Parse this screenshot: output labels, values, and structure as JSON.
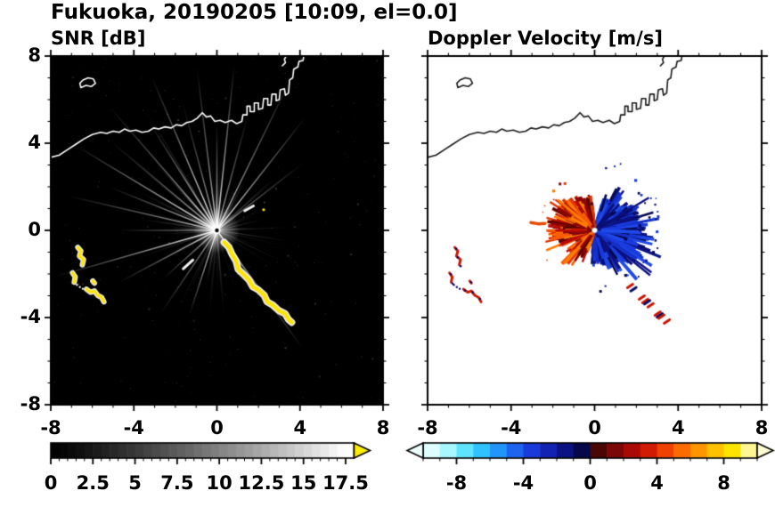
{
  "header": {
    "title": "Fukuoka, 20190205 [10:09, el=0.0]"
  },
  "chart_data": [
    {
      "type": "heatmap",
      "panel": "snr",
      "title": "SNR [dB]",
      "xlim": [
        -8,
        8
      ],
      "ylim": [
        -8,
        8
      ],
      "xticks": [
        -8,
        -4,
        0,
        4,
        8
      ],
      "yticks": [
        8,
        4,
        0,
        -4,
        -8
      ],
      "minor_tick_step": 1,
      "grid": false,
      "background": "#000000",
      "colorbar": {
        "units": "dB",
        "range": [
          0,
          18
        ],
        "label_ticks": [
          0,
          2.5,
          5,
          7.5,
          10,
          12.5,
          15,
          17.5
        ],
        "minor_step": 0.5,
        "start_color": "#000000",
        "end_color": "#ffffff",
        "over_arrow_color": "#ffee00"
      },
      "content": {
        "radar_center": [
          0,
          0
        ],
        "streaks": {
          "seed": 7,
          "count": 120,
          "max_len_units": 7.8,
          "bright_rays_deg": [
            38,
            52,
            64,
            75,
            84,
            90,
            97,
            105,
            113,
            122,
            131,
            140,
            149,
            158,
            167,
            180,
            196,
            208,
            222,
            236,
            252,
            306
          ],
          "bright_len_units": [
            5.2,
            6.8,
            7.9,
            5.6,
            7.9,
            5.0,
            7.8,
            6.2,
            7.9,
            6.0,
            7.7,
            6.5,
            7.8,
            5.4,
            7.2,
            4.6,
            7.9,
            5.2,
            3.4,
            4.8,
            4.2,
            6.9
          ]
        },
        "noise": {
          "seed": 11,
          "count": 260
        },
        "echo_outline_color": "#ffffff",
        "echo_fill_color": "#ffe400",
        "bright_dashes": [
          [
            [
              -1.62,
              -1.76
            ],
            [
              -1.16,
              -1.36
            ]
          ],
          [
            [
              1.34,
              0.9
            ],
            [
              1.76,
              1.12
            ]
          ]
        ],
        "yellow_dot": [
          2.25,
          0.95
        ]
      }
    },
    {
      "type": "heatmap",
      "panel": "velocity",
      "title": "Doppler Velocity [m/s]",
      "xlim": [
        -8,
        8
      ],
      "ylim": [
        -8,
        8
      ],
      "xticks": [
        -8,
        -4,
        0,
        4,
        8
      ],
      "yticks": [
        8,
        4,
        0,
        -4,
        -8
      ],
      "minor_tick_step": 1,
      "grid": false,
      "background": "#ffffff",
      "colorbar": {
        "units": "m/s",
        "range": [
          -10,
          10
        ],
        "label_ticks": [
          -8,
          -4,
          0,
          4,
          8
        ],
        "minor_step": 1,
        "block_colors": [
          "#dffdff",
          "#a8f6ff",
          "#5fe4ff",
          "#2fc2ff",
          "#2295f8",
          "#1e64ee",
          "#1a3ada",
          "#1422b4",
          "#0c1282",
          "#05084a",
          "#4a0505",
          "#7c0707",
          "#aa0a06",
          "#d11b04",
          "#ef4102",
          "#fb6c00",
          "#ff9600",
          "#ffc100",
          "#ffe400",
          "#fdf692"
        ],
        "under_arrow_color": "#eeffff",
        "over_arrow_color": "#ffffd2"
      },
      "content": {
        "radar_center": [
          0,
          0
        ],
        "negative_lobe": {
          "seed": 21,
          "count": 560,
          "ang_deg": [
            -95,
            75
          ],
          "peak_deg": -12,
          "base_len_units": 2.5,
          "palette": [
            "#05084a",
            "#0c1282",
            "#1430c8",
            "#1a3ade",
            "#0a0f74",
            "#1f49e8"
          ]
        },
        "positive_lobe": {
          "seed": 33,
          "count": 470,
          "ang_deg": [
            95,
            252
          ],
          "peak_deg": 163,
          "gap_deg": [
            204,
            216
          ],
          "base_len_units": 2.05,
          "palette": [
            "#5a0404",
            "#8c0606",
            "#bb0b03",
            "#e03202",
            "#f85c05",
            "#ff7d00"
          ]
        },
        "edge_specks": {
          "seed": 55,
          "count": 46
        },
        "west_echo_color": "#cc1602",
        "west_dot_color": "#070b66",
        "southeast_specks": [
          [
            1.7,
            -2.55,
            "r"
          ],
          [
            1.86,
            -2.7,
            "b"
          ],
          [
            2.26,
            -3.08,
            "r"
          ],
          [
            2.42,
            -3.24,
            "r"
          ],
          [
            2.52,
            -3.3,
            "b"
          ],
          [
            2.68,
            -3.44,
            "r"
          ],
          [
            3.02,
            -3.82,
            "r"
          ],
          [
            3.12,
            -3.9,
            "b"
          ],
          [
            3.2,
            -3.96,
            "r"
          ],
          [
            3.46,
            -4.18,
            "r"
          ]
        ],
        "isolated_dash": [
          [
            -3.05,
            0.36
          ],
          [
            -2.7,
            0.3
          ],
          [
            -2.38,
            0.32
          ]
        ],
        "isolated_dash_color": "#e84a00"
      }
    }
  ],
  "coastline": {
    "lines": [
      [
        [
          -8,
          3.35
        ],
        [
          -7.6,
          3.45
        ],
        [
          -7.2,
          3.7
        ],
        [
          -6.8,
          3.95
        ],
        [
          -6.4,
          4.2
        ],
        [
          -6,
          4.4
        ],
        [
          -5.6,
          4.5
        ],
        [
          -5.3,
          4.45
        ],
        [
          -5,
          4.55
        ],
        [
          -4.7,
          4.5
        ],
        [
          -4.45,
          4.65
        ],
        [
          -4.2,
          4.55
        ],
        [
          -3.9,
          4.6
        ],
        [
          -3.6,
          4.5
        ],
        [
          -3.3,
          4.55
        ],
        [
          -3.05,
          4.7
        ],
        [
          -2.8,
          4.65
        ],
        [
          -2.5,
          4.75
        ],
        [
          -2.2,
          4.7
        ],
        [
          -1.95,
          4.85
        ],
        [
          -1.7,
          4.8
        ],
        [
          -1.45,
          4.95
        ],
        [
          -1.2,
          5
        ],
        [
          -0.95,
          5.15
        ],
        [
          -0.7,
          5.4
        ],
        [
          -0.5,
          5.2
        ],
        [
          -0.3,
          5.25
        ],
        [
          -0.1,
          5
        ],
        [
          0.15,
          5.05
        ],
        [
          0.4,
          4.95
        ],
        [
          0.7,
          5.05
        ],
        [
          0.95,
          4.9
        ],
        [
          1.2,
          5
        ],
        [
          1.25,
          5.3
        ],
        [
          1.45,
          5.3
        ],
        [
          1.45,
          5.7
        ],
        [
          1.6,
          5.7
        ],
        [
          1.6,
          5.45
        ],
        [
          1.8,
          5.45
        ],
        [
          1.8,
          5.85
        ],
        [
          2,
          5.85
        ],
        [
          2,
          5.55
        ],
        [
          2.2,
          5.6
        ],
        [
          2.25,
          6.05
        ],
        [
          2.45,
          6.05
        ],
        [
          2.45,
          5.75
        ],
        [
          2.6,
          5.75
        ],
        [
          2.65,
          6.25
        ],
        [
          2.85,
          6.25
        ],
        [
          2.85,
          5.95
        ],
        [
          3,
          6
        ],
        [
          3.05,
          6.45
        ],
        [
          3.25,
          6.5
        ],
        [
          3.3,
          6.2
        ],
        [
          3.45,
          6.3
        ],
        [
          3.5,
          6.9
        ],
        [
          3.65,
          7
        ],
        [
          3.7,
          7.4
        ],
        [
          3.9,
          7.5
        ],
        [
          3.95,
          7.75
        ],
        [
          4.15,
          7.8
        ],
        [
          4.2,
          8.1
        ]
      ],
      [
        [
          -6.55,
          6.55
        ],
        [
          -6.3,
          6.65
        ],
        [
          -6.05,
          6.6
        ],
        [
          -5.85,
          6.75
        ],
        [
          -5.95,
          6.95
        ],
        [
          -6.2,
          7
        ],
        [
          -6.45,
          6.9
        ],
        [
          -6.6,
          6.75
        ],
        [
          -6.55,
          6.55
        ]
      ],
      [
        [
          3.15,
          7.55
        ],
        [
          3.3,
          7.7
        ],
        [
          3.25,
          7.85
        ],
        [
          3.4,
          8.1
        ]
      ]
    ]
  },
  "clutter": {
    "southeast_arc": [
      [
        0.35,
        -0.55
      ],
      [
        0.58,
        -0.78
      ],
      [
        0.72,
        -1.08
      ],
      [
        0.93,
        -1.42
      ],
      [
        1.02,
        -1.78
      ],
      [
        1.28,
        -2.02
      ],
      [
        1.55,
        -2.28
      ],
      [
        1.72,
        -2.58
      ],
      [
        1.98,
        -2.72
      ],
      [
        2.28,
        -2.98
      ],
      [
        2.42,
        -3.28
      ],
      [
        2.68,
        -3.42
      ],
      [
        2.98,
        -3.68
      ],
      [
        3.28,
        -3.82
      ],
      [
        3.44,
        -4.08
      ],
      [
        3.6,
        -4.22
      ]
    ],
    "west_echoes": [
      [
        [
          -6.7,
          -0.78
        ],
        [
          -6.55,
          -0.95
        ],
        [
          -6.62,
          -1.18
        ],
        [
          -6.42,
          -1.34
        ],
        [
          -6.48,
          -1.58
        ]
      ],
      [
        [
          -6.95,
          -1.95
        ],
        [
          -6.82,
          -2.14
        ],
        [
          -6.87,
          -2.38
        ]
      ],
      [
        [
          -6.28,
          -2.7
        ],
        [
          -6.08,
          -2.84
        ],
        [
          -5.9,
          -2.78
        ],
        [
          -5.74,
          -2.98
        ],
        [
          -5.55,
          -3.08
        ],
        [
          -5.44,
          -3.28
        ]
      ],
      [
        [
          -5.98,
          -2.32
        ],
        [
          -5.9,
          -2.42
        ]
      ]
    ],
    "west_dot_trail": [
      [
        -6.74,
        -2.5
      ],
      [
        -6.6,
        -2.6
      ],
      [
        -6.46,
        -2.68
      ]
    ]
  }
}
